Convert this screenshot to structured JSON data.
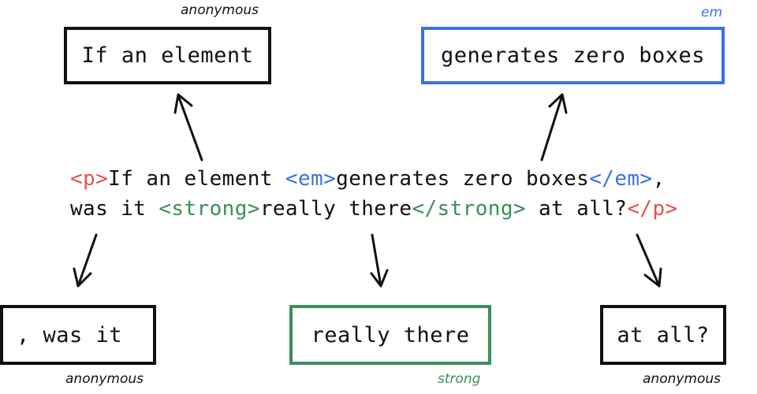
{
  "colors": {
    "ink": "#111111",
    "p_tag": "#e8504a",
    "em_tag": "#3a73e0",
    "strong_tag": "#3a8f5a"
  },
  "top_boxes": {
    "anonymous_box": {
      "text": "If an element",
      "label": "anonymous"
    },
    "em_box": {
      "text": "generates zero boxes",
      "label": "em"
    }
  },
  "bottom_boxes": {
    "anonymous_box_1": {
      "text": ", was it",
      "label": "anonymous"
    },
    "strong_box": {
      "text": "really there",
      "label": "strong"
    },
    "anonymous_box_2": {
      "text": "at all?",
      "label": "anonymous"
    }
  },
  "code": {
    "line1": {
      "p_open": "<p>",
      "text1": "If an element ",
      "em_open": "<em>",
      "text2": "generates zero boxes",
      "em_close": "</em>",
      "text3": ","
    },
    "line2": {
      "text1": "was it ",
      "strong_open": "<strong>",
      "text2": "really there",
      "strong_close": "</strong>",
      "text3": " at all?",
      "p_close": "</p>"
    }
  }
}
